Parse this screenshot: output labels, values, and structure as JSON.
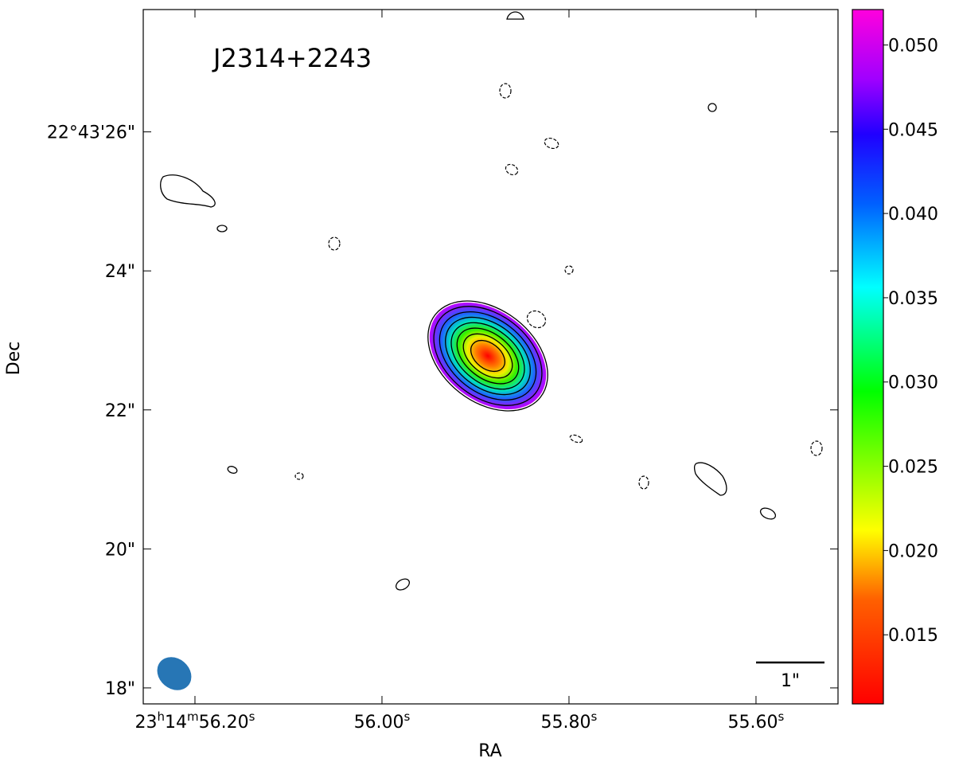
{
  "chart_data": {
    "type": "image",
    "title": "J2314+2243",
    "x_label": "RA",
    "y_label": "Dec",
    "xlim": [
      56.2553,
      55.5123
    ],
    "xticks": [
      {
        "value": 56.2,
        "label": "23h14m56.20s"
      },
      {
        "value": 56.0,
        "label": "56.00s"
      },
      {
        "value": 55.8,
        "label": "55.80s"
      },
      {
        "value": 55.6,
        "label": "55.60s"
      }
    ],
    "ylim": [
      17.77,
      27.76
    ],
    "yticks": [
      {
        "value": 26,
        "label": "22°43'26\""
      },
      {
        "value": 24,
        "label": "24\""
      },
      {
        "value": 22,
        "label": "22\""
      },
      {
        "value": 20,
        "label": "20\""
      },
      {
        "value": 18,
        "label": "18\""
      }
    ],
    "colorbar": {
      "lim": [
        0.0109,
        0.0521
      ],
      "ticks": [
        {
          "value": 0.015,
          "label": "0.015"
        },
        {
          "value": 0.02,
          "label": "0.020"
        },
        {
          "value": 0.025,
          "label": "0.025"
        },
        {
          "value": 0.03,
          "label": "0.030"
        },
        {
          "value": 0.035,
          "label": "0.035"
        },
        {
          "value": 0.04,
          "label": "0.040"
        },
        {
          "value": 0.045,
          "label": "0.045"
        },
        {
          "value": 0.05,
          "label": "0.050"
        }
      ]
    },
    "scale_bar_label": "1\""
  }
}
